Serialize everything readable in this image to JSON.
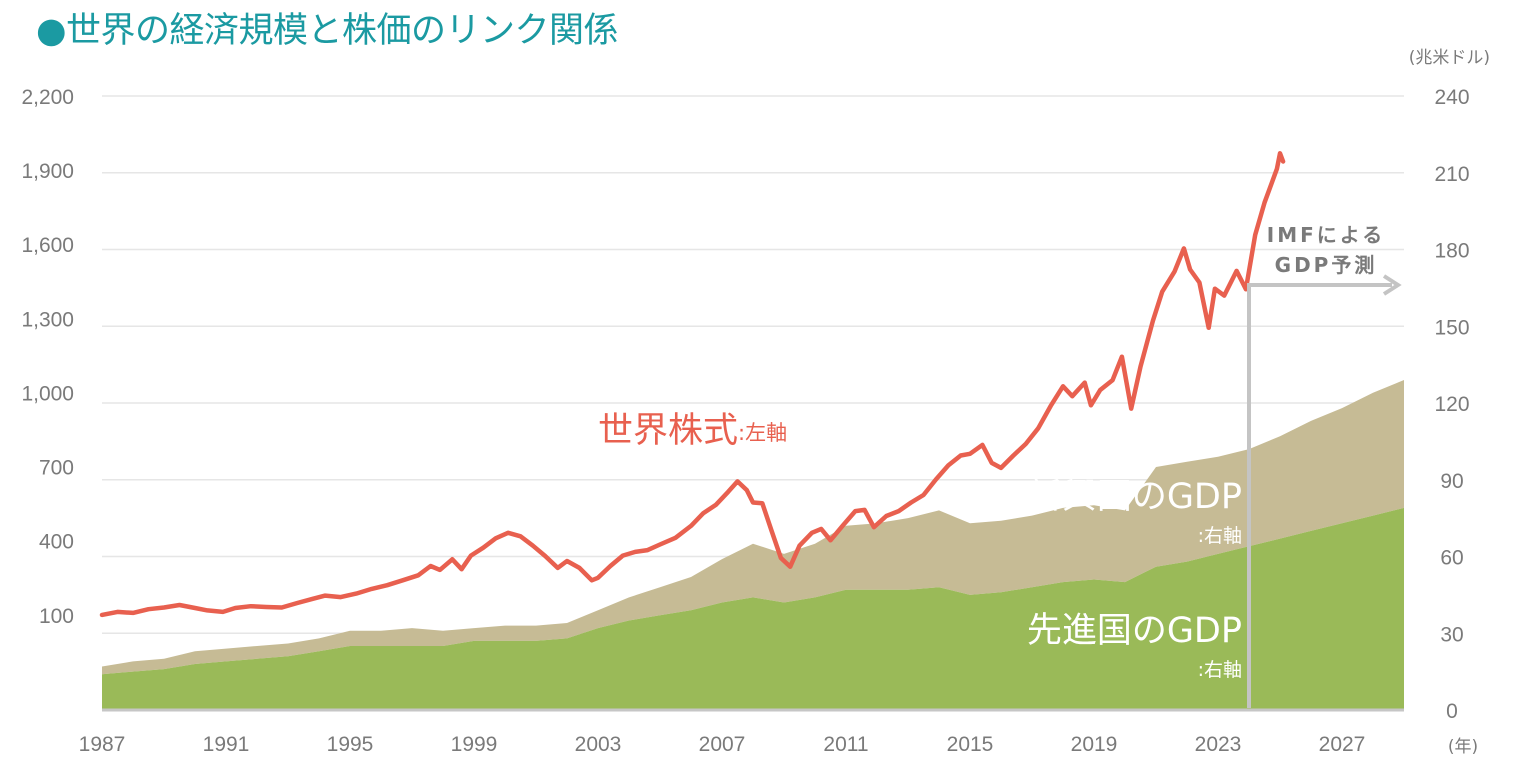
{
  "title": "●世界の経済規模と株価のリンク関係",
  "colors": {
    "title": "#1b9aa2",
    "stock": "#e8604f",
    "emerging_gdp": "#c6bb95",
    "developed_gdp": "#9aba58",
    "forecast_marker": "#c4c4c4",
    "axis_text": "#7a7a7a",
    "grid": "#e6e6e6"
  },
  "chart_data": {
    "type": "area",
    "x_unit_label": "(年)",
    "y2_unit_label": "(兆米ドル)",
    "x_ticks": [
      1987,
      1991,
      1995,
      1999,
      2003,
      2007,
      2011,
      2015,
      2019,
      2023,
      2027
    ],
    "xlim": [
      1987,
      2029
    ],
    "y_left": {
      "ticks": [
        100,
        400,
        700,
        1000,
        1300,
        1600,
        1900,
        2200
      ],
      "tick_labels": [
        "100",
        "400",
        "700",
        "1,000",
        "1,300",
        "1,600",
        "1,900",
        "2,200"
      ],
      "ylim": [
        -285,
        2200
      ]
    },
    "y_right": {
      "ticks": [
        0,
        30,
        60,
        90,
        120,
        150,
        180,
        210,
        240
      ],
      "tick_labels": [
        "0",
        "30",
        "60",
        "90",
        "120",
        "150",
        "180",
        "210",
        "240"
      ],
      "ylim": [
        0,
        240
      ]
    },
    "gdp_years": [
      1987,
      1988,
      1989,
      1990,
      1991,
      1992,
      1993,
      1994,
      1995,
      1996,
      1997,
      1998,
      1999,
      2000,
      2001,
      2002,
      2003,
      2004,
      2005,
      2006,
      2007,
      2008,
      2009,
      2010,
      2011,
      2012,
      2013,
      2014,
      2015,
      2016,
      2017,
      2018,
      2019,
      2020,
      2021,
      2022,
      2023,
      2024,
      2025,
      2026,
      2027,
      2028,
      2029
    ],
    "series": [
      {
        "name": "先進国のGDP",
        "label_suffix": ":右軸",
        "axis": "right",
        "values": [
          14,
          15,
          16,
          18,
          19,
          20,
          21,
          23,
          25,
          25,
          25,
          25,
          27,
          27,
          27,
          28,
          32,
          35,
          37,
          39,
          42,
          44,
          42,
          44,
          47,
          47,
          47,
          48,
          45,
          46,
          48,
          50,
          51,
          50,
          56,
          58,
          61,
          64,
          67,
          70,
          73,
          76,
          79
        ]
      },
      {
        "name": "新興国のGDP",
        "label_suffix": ":右軸",
        "axis": "right",
        "values": [
          3,
          4,
          4,
          5,
          5,
          5,
          5,
          5,
          6,
          6,
          7,
          6,
          5,
          6,
          6,
          6,
          7,
          9,
          11,
          13,
          17,
          21,
          19,
          21,
          25,
          26,
          28,
          30,
          28,
          28,
          28,
          29,
          29,
          28,
          39,
          39,
          38,
          38,
          40,
          43,
          45,
          48,
          50
        ]
      },
      {
        "name": "世界株式",
        "label_suffix": ":左軸",
        "axis": "left",
        "points": [
          [
            1987.0,
            100
          ],
          [
            1987.5,
            112
          ],
          [
            1988.0,
            108
          ],
          [
            1988.5,
            123
          ],
          [
            1989.0,
            130
          ],
          [
            1989.5,
            140
          ],
          [
            1990.0,
            128
          ],
          [
            1990.4,
            118
          ],
          [
            1990.9,
            112
          ],
          [
            1991.3,
            128
          ],
          [
            1991.8,
            135
          ],
          [
            1992.3,
            132
          ],
          [
            1992.8,
            130
          ],
          [
            1993.3,
            148
          ],
          [
            1993.8,
            165
          ],
          [
            1994.2,
            178
          ],
          [
            1994.7,
            172
          ],
          [
            1995.2,
            186
          ],
          [
            1995.7,
            205
          ],
          [
            1996.2,
            220
          ],
          [
            1996.7,
            240
          ],
          [
            1997.2,
            260
          ],
          [
            1997.6,
            298
          ],
          [
            1997.9,
            282
          ],
          [
            1998.3,
            325
          ],
          [
            1998.6,
            285
          ],
          [
            1998.9,
            340
          ],
          [
            1999.3,
            372
          ],
          [
            1999.7,
            410
          ],
          [
            2000.1,
            432
          ],
          [
            2000.5,
            418
          ],
          [
            2000.9,
            380
          ],
          [
            2001.3,
            338
          ],
          [
            2001.7,
            290
          ],
          [
            2002.0,
            318
          ],
          [
            2002.4,
            290
          ],
          [
            2002.8,
            240
          ],
          [
            2003.0,
            250
          ],
          [
            2003.4,
            298
          ],
          [
            2003.8,
            340
          ],
          [
            2004.2,
            355
          ],
          [
            2004.6,
            362
          ],
          [
            2005.0,
            385
          ],
          [
            2005.5,
            412
          ],
          [
            2006.0,
            460
          ],
          [
            2006.4,
            512
          ],
          [
            2006.8,
            545
          ],
          [
            2007.2,
            598
          ],
          [
            2007.5,
            640
          ],
          [
            2007.8,
            605
          ],
          [
            2008.0,
            555
          ],
          [
            2008.3,
            552
          ],
          [
            2008.6,
            440
          ],
          [
            2008.9,
            330
          ],
          [
            2009.2,
            295
          ],
          [
            2009.5,
            380
          ],
          [
            2009.9,
            432
          ],
          [
            2010.2,
            448
          ],
          [
            2010.5,
            402
          ],
          [
            2010.9,
            462
          ],
          [
            2011.3,
            520
          ],
          [
            2011.6,
            525
          ],
          [
            2011.9,
            455
          ],
          [
            2012.3,
            500
          ],
          [
            2012.7,
            520
          ],
          [
            2013.1,
            555
          ],
          [
            2013.5,
            585
          ],
          [
            2013.9,
            648
          ],
          [
            2014.3,
            705
          ],
          [
            2014.7,
            745
          ],
          [
            2015.0,
            752
          ],
          [
            2015.4,
            788
          ],
          [
            2015.7,
            715
          ],
          [
            2016.0,
            695
          ],
          [
            2016.4,
            745
          ],
          [
            2016.8,
            792
          ],
          [
            2017.2,
            855
          ],
          [
            2017.6,
            945
          ],
          [
            2018.0,
            1025
          ],
          [
            2018.3,
            985
          ],
          [
            2018.7,
            1040
          ],
          [
            2018.9,
            948
          ],
          [
            2019.2,
            1010
          ],
          [
            2019.6,
            1050
          ],
          [
            2019.9,
            1145
          ],
          [
            2020.2,
            935
          ],
          [
            2020.5,
            1105
          ],
          [
            2020.9,
            1290
          ],
          [
            2021.2,
            1408
          ],
          [
            2021.6,
            1490
          ],
          [
            2021.9,
            1583
          ],
          [
            2022.1,
            1498
          ],
          [
            2022.4,
            1445
          ],
          [
            2022.7,
            1262
          ],
          [
            2022.9,
            1420
          ],
          [
            2023.2,
            1392
          ],
          [
            2023.6,
            1492
          ],
          [
            2023.9,
            1418
          ],
          [
            2024.2,
            1638
          ],
          [
            2024.5,
            1768
          ],
          [
            2024.9,
            1905
          ],
          [
            2025.0,
            1968
          ],
          [
            2025.1,
            1935
          ]
        ]
      }
    ],
    "annotations": {
      "forecast_label_1": "IMFによる",
      "forecast_label_2": "GDP予測",
      "forecast_start_year": 2024
    }
  }
}
